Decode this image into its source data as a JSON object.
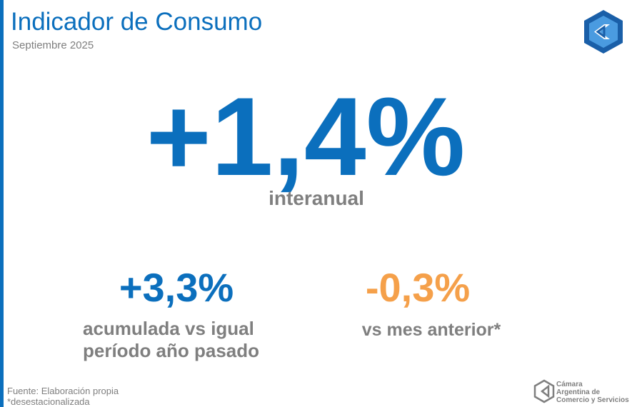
{
  "header": {
    "title": "Indicador de Consumo",
    "subtitle": "Septiembre 2025"
  },
  "main": {
    "value": "+1,4%",
    "label": "interanual"
  },
  "stats": [
    {
      "value": "+3,3%",
      "label": [
        "acumulada vs igual",
        "período año pasado"
      ]
    },
    {
      "value": "-0,3%",
      "label": [
        "vs mes anterior*"
      ]
    }
  ],
  "footer": {
    "source": "Fuente: Elaboración propia",
    "note": "*desestacionalizada"
  },
  "logo": {
    "lines": [
      "Cámara",
      "Argentina de",
      "Comercio y Servicios"
    ]
  }
}
